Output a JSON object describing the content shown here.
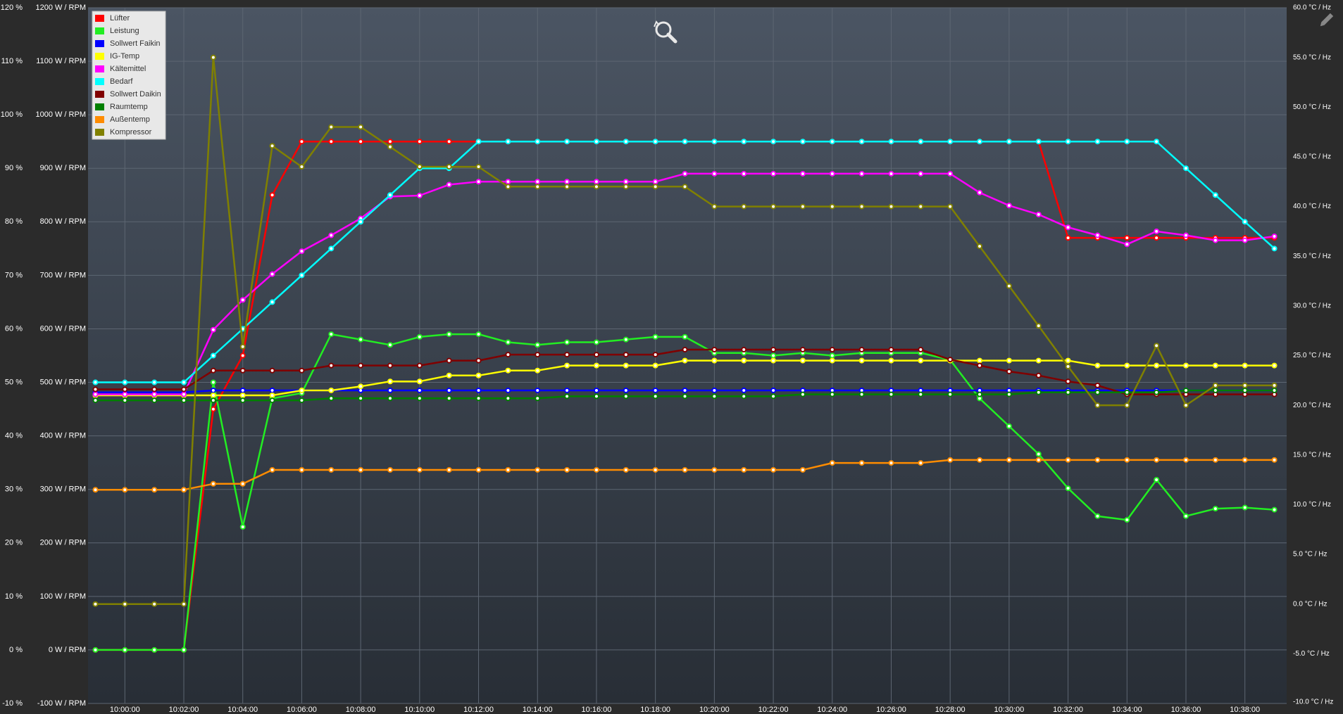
{
  "chart_data": {
    "type": "line",
    "x": [
      "09:59:00",
      "10:00:00",
      "10:01:00",
      "10:02:00",
      "10:03:00",
      "10:04:00",
      "10:05:00",
      "10:06:00",
      "10:07:00",
      "10:08:00",
      "10:09:00",
      "10:10:00",
      "10:11:00",
      "10:12:00",
      "10:13:00",
      "10:14:00",
      "10:15:00",
      "10:16:00",
      "10:17:00",
      "10:18:00",
      "10:19:00",
      "10:20:00",
      "10:21:00",
      "10:22:00",
      "10:23:00",
      "10:24:00",
      "10:25:00",
      "10:26:00",
      "10:27:00",
      "10:28:00",
      "10:29:00",
      "10:30:00",
      "10:31:00",
      "10:32:00",
      "10:33:00",
      "10:34:00",
      "10:35:00",
      "10:36:00",
      "10:37:00",
      "10:38:00",
      "10:39:00"
    ],
    "xlim": [
      "09:58:45",
      "10:39:25"
    ],
    "xticks": [
      "10:00:00",
      "10:02:00",
      "10:04:00",
      "10:06:00",
      "10:08:00",
      "10:10:00",
      "10:12:00",
      "10:14:00",
      "10:16:00",
      "10:18:00",
      "10:20:00",
      "10:22:00",
      "10:24:00",
      "10:26:00",
      "10:28:00",
      "10:30:00",
      "10:32:00",
      "10:34:00",
      "10:36:00",
      "10:38:00"
    ],
    "ylim": [
      -10,
      120
    ],
    "yticks": [
      {
        "value": -10,
        "label": "-10 %"
      },
      {
        "value": 0,
        "label": "0 %"
      },
      {
        "value": 10,
        "label": "10 %"
      },
      {
        "value": 20,
        "label": "20 %"
      },
      {
        "value": 30,
        "label": "30 %"
      },
      {
        "value": 40,
        "label": "40 %"
      },
      {
        "value": 50,
        "label": "50 %"
      },
      {
        "value": 60,
        "label": "60 %"
      },
      {
        "value": 70,
        "label": "70 %"
      },
      {
        "value": 80,
        "label": "80 %"
      },
      {
        "value": 90,
        "label": "90 %"
      },
      {
        "value": 100,
        "label": "100 %"
      },
      {
        "value": 110,
        "label": "110 %"
      },
      {
        "value": 120,
        "label": "120 %"
      }
    ],
    "y3lim": [
      -100,
      1200
    ],
    "y3ticks": [
      {
        "value": -100,
        "label": "-100 W / RPM"
      },
      {
        "value": 0,
        "label": "0 W / RPM"
      },
      {
        "value": 100,
        "label": "100 W / RPM"
      },
      {
        "value": 200,
        "label": "200 W / RPM"
      },
      {
        "value": 300,
        "label": "300 W / RPM"
      },
      {
        "value": 400,
        "label": "400 W / RPM"
      },
      {
        "value": 500,
        "label": "500 W / RPM"
      },
      {
        "value": 600,
        "label": "600 W / RPM"
      },
      {
        "value": 700,
        "label": "700 W / RPM"
      },
      {
        "value": 800,
        "label": "800 W / RPM"
      },
      {
        "value": 900,
        "label": "900 W / RPM"
      },
      {
        "value": 1000,
        "label": "1000 W / RPM"
      },
      {
        "value": 1100,
        "label": "1100 W / RPM"
      },
      {
        "value": 1200,
        "label": "1200 W / RPM"
      }
    ],
    "y2lim": [
      -10,
      60
    ],
    "y2ticks": [
      {
        "value": -10,
        "label": "-10.0 °C / Hz"
      },
      {
        "value": -5,
        "label": "-5.0 °C / Hz"
      },
      {
        "value": 0,
        "label": "0.0 °C / Hz"
      },
      {
        "value": 5,
        "label": "5.0 °C / Hz"
      },
      {
        "value": 10,
        "label": "10.0 °C / Hz"
      },
      {
        "value": 15,
        "label": "15.0 °C / Hz"
      },
      {
        "value": 20,
        "label": "20.0 °C / Hz"
      },
      {
        "value": 25,
        "label": "25.0 °C / Hz"
      },
      {
        "value": 30,
        "label": "30.0 °C / Hz"
      },
      {
        "value": 35,
        "label": "35.0 °C / Hz"
      },
      {
        "value": 40,
        "label": "40.0 °C / Hz"
      },
      {
        "value": 45,
        "label": "45.0 °C / Hz"
      },
      {
        "value": 50,
        "label": "50.0 °C / Hz"
      },
      {
        "value": 55,
        "label": "55.0 °C / Hz"
      },
      {
        "value": 60,
        "label": "60.0 °C / Hz"
      }
    ],
    "grid": true,
    "legend": "top-left",
    "series": [
      {
        "name": "Lüfter",
        "color": "#ff0000",
        "axis": "y3",
        "values": [
          0,
          0,
          0,
          0,
          450,
          550,
          850,
          950,
          950,
          950,
          950,
          950,
          950,
          950,
          950,
          950,
          950,
          950,
          950,
          950,
          950,
          950,
          950,
          950,
          950,
          950,
          950,
          950,
          950,
          950,
          950,
          950,
          950,
          770,
          770,
          770,
          770,
          770,
          770,
          770,
          770
        ]
      },
      {
        "name": "Leistung",
        "color": "#22ee22",
        "axis": "y3",
        "values": [
          0,
          0,
          0,
          0,
          500,
          230,
          470,
          480,
          590,
          580,
          570,
          585,
          590,
          590,
          575,
          570,
          575,
          575,
          580,
          585,
          585,
          555,
          555,
          550,
          555,
          550,
          555,
          555,
          555,
          542,
          470,
          418,
          366,
          302,
          250,
          243,
          318,
          250,
          264,
          266,
          262
        ]
      },
      {
        "name": "Sollwert Faikin",
        "color": "#0000ff",
        "axis": "y2",
        "values": [
          21.3,
          21.3,
          21.3,
          21.3,
          21.5,
          21.5,
          21.5,
          21.5,
          21.5,
          21.5,
          21.5,
          21.5,
          21.5,
          21.5,
          21.5,
          21.5,
          21.5,
          21.5,
          21.5,
          21.5,
          21.5,
          21.5,
          21.5,
          21.5,
          21.5,
          21.5,
          21.5,
          21.5,
          21.5,
          21.5,
          21.5,
          21.5,
          21.5,
          21.5,
          21.5,
          21.5,
          21.5,
          21.5,
          21.5,
          21.5,
          21.5
        ]
      },
      {
        "name": "IG-Temp",
        "color": "#ffff00",
        "axis": "y2",
        "values": [
          21.0,
          21.0,
          21.0,
          21.0,
          21.0,
          21.0,
          21.0,
          21.5,
          21.5,
          21.9,
          22.4,
          22.4,
          23.0,
          23.0,
          23.5,
          23.5,
          24.0,
          24.0,
          24.0,
          24.0,
          24.5,
          24.5,
          24.5,
          24.5,
          24.5,
          24.5,
          24.5,
          24.5,
          24.5,
          24.5,
          24.5,
          24.5,
          24.5,
          24.5,
          24.0,
          24.0,
          24.0,
          24.0,
          24.0,
          24.0,
          24.0
        ]
      },
      {
        "name": "Kältemittel",
        "color": "#ff00ff",
        "axis": "y2",
        "values": [
          21.1,
          21.1,
          21.1,
          21.1,
          27.6,
          30.6,
          33.2,
          35.5,
          37.1,
          38.8,
          41.0,
          41.1,
          42.2,
          42.5,
          42.5,
          42.5,
          42.5,
          42.5,
          42.5,
          42.5,
          43.3,
          43.3,
          43.3,
          43.3,
          43.3,
          43.3,
          43.3,
          43.3,
          43.3,
          43.3,
          41.4,
          40.1,
          39.2,
          37.9,
          37.1,
          36.2,
          37.5,
          37.1,
          36.6,
          36.6,
          37.0
        ]
      },
      {
        "name": "Bedarf",
        "color": "#00ffff",
        "axis": "y",
        "values": [
          50,
          50,
          50,
          50,
          55,
          60,
          65,
          70,
          75,
          80,
          85,
          90,
          90,
          95,
          95,
          95,
          95,
          95,
          95,
          95,
          95,
          95,
          95,
          95,
          95,
          95,
          95,
          95,
          95,
          95,
          95,
          95,
          95,
          95,
          95,
          95,
          95,
          90,
          85,
          80,
          75
        ]
      },
      {
        "name": "Sollwert Daikin",
        "color": "#800000",
        "axis": "y2",
        "values": [
          21.6,
          21.6,
          21.6,
          21.6,
          23.5,
          23.5,
          23.5,
          23.5,
          24.0,
          24.0,
          24.0,
          24.0,
          24.5,
          24.5,
          25.1,
          25.1,
          25.1,
          25.1,
          25.1,
          25.1,
          25.6,
          25.6,
          25.6,
          25.6,
          25.6,
          25.6,
          25.6,
          25.6,
          25.6,
          24.6,
          24.0,
          23.4,
          23.0,
          22.4,
          22.0,
          21.1,
          21.1,
          21.1,
          21.1,
          21.1,
          21.1
        ]
      },
      {
        "name": "Raumtemp",
        "color": "#008000",
        "axis": "y2",
        "values": [
          20.5,
          20.5,
          20.5,
          20.5,
          20.5,
          20.5,
          20.5,
          20.5,
          20.7,
          20.7,
          20.7,
          20.7,
          20.7,
          20.7,
          20.7,
          20.7,
          20.9,
          20.9,
          20.9,
          20.9,
          20.9,
          20.9,
          20.9,
          20.9,
          21.1,
          21.1,
          21.1,
          21.1,
          21.1,
          21.1,
          21.1,
          21.1,
          21.3,
          21.3,
          21.3,
          21.3,
          21.3,
          21.5,
          21.5,
          21.5,
          21.5
        ]
      },
      {
        "name": "Außentemp",
        "color": "#ff8c00",
        "axis": "y2",
        "values": [
          11.5,
          11.5,
          11.5,
          11.5,
          12.1,
          12.1,
          13.5,
          13.5,
          13.5,
          13.5,
          13.5,
          13.5,
          13.5,
          13.5,
          13.5,
          13.5,
          13.5,
          13.5,
          13.5,
          13.5,
          13.5,
          13.5,
          13.5,
          13.5,
          13.5,
          14.2,
          14.2,
          14.2,
          14.2,
          14.5,
          14.5,
          14.5,
          14.5,
          14.5,
          14.5,
          14.5,
          14.5,
          14.5,
          14.5,
          14.5,
          14.5
        ]
      },
      {
        "name": "Kompressor",
        "color": "#808000",
        "axis": "y2",
        "values": [
          0,
          0,
          0,
          0,
          55,
          25.9,
          46.1,
          44.0,
          48.0,
          48.0,
          46.0,
          44.0,
          44.0,
          44.0,
          42.0,
          42.0,
          42.0,
          42.0,
          42.0,
          42.0,
          42.0,
          40.0,
          40.0,
          40.0,
          40.0,
          40.0,
          40.0,
          40.0,
          40.0,
          40.0,
          36.0,
          32.0,
          28.0,
          23.9,
          20.0,
          20.0,
          26.0,
          20.0,
          22.0,
          22.0,
          22.0
        ]
      }
    ]
  }
}
